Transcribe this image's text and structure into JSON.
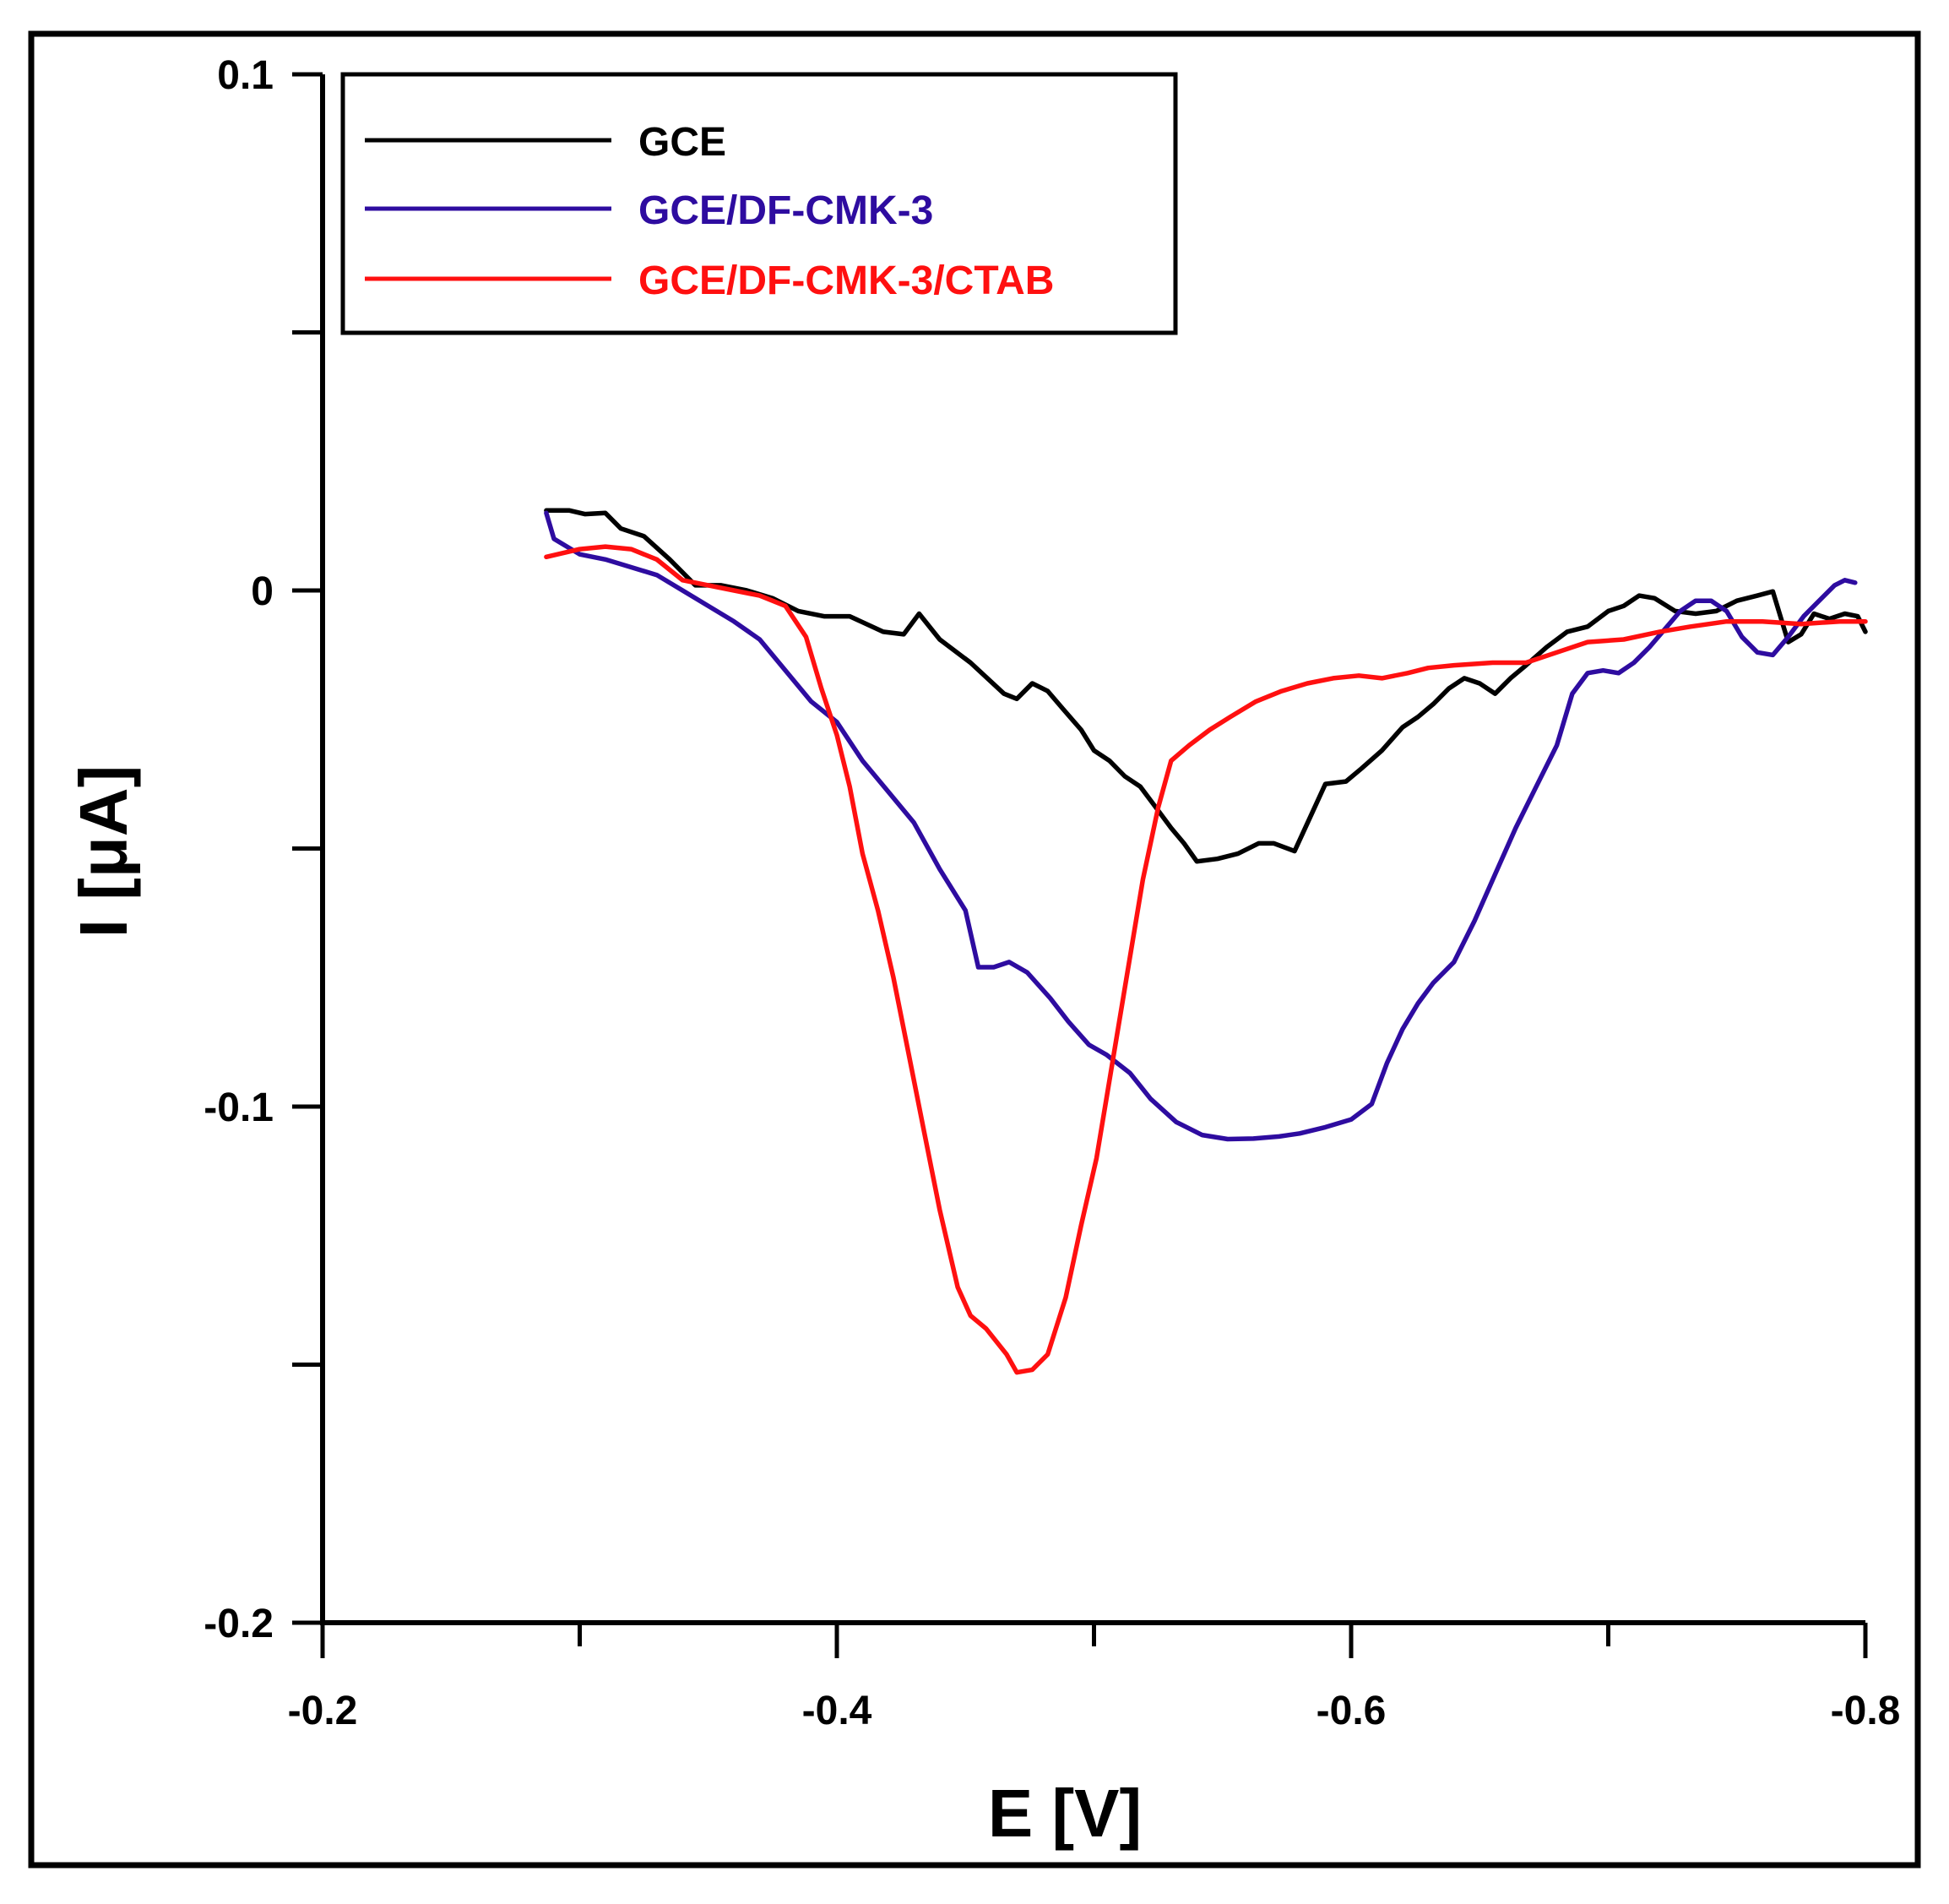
{
  "chart_data": {
    "type": "line",
    "title": "",
    "xlabel": "E [V]",
    "ylabel": "I [μA]",
    "xlim": [
      -0.2,
      -0.8
    ],
    "ylim": [
      -0.2,
      0.1
    ],
    "x_ticks": [
      {
        "value": -0.2,
        "label": "-0.2"
      },
      {
        "value": -0.4,
        "label": "-0.4"
      },
      {
        "value": -0.6,
        "label": "-0.6"
      },
      {
        "value": -0.8,
        "label": "-0.8"
      }
    ],
    "x_minor_ticks": [
      -0.3,
      -0.5,
      -0.7
    ],
    "y_ticks": [
      {
        "value": 0.1,
        "label": "0.1"
      },
      {
        "value": 0,
        "label": "0"
      },
      {
        "value": -0.1,
        "label": "-0.1"
      },
      {
        "value": -0.2,
        "label": "-0.2"
      }
    ],
    "y_minor_ticks": [
      0.05,
      -0.05,
      -0.15
    ],
    "grid": false,
    "legend_position": "top-left",
    "series": [
      {
        "name": "GCE",
        "color": "#000000",
        "points": [
          [
            -0.287,
            0.0155
          ],
          [
            -0.296,
            0.0155
          ],
          [
            -0.302,
            0.0148
          ],
          [
            -0.31,
            0.015
          ],
          [
            -0.316,
            0.012
          ],
          [
            -0.325,
            0.0105
          ],
          [
            -0.335,
            0.006
          ],
          [
            -0.345,
            0.001
          ],
          [
            -0.355,
            0.001
          ],
          [
            -0.365,
            0.0
          ],
          [
            -0.375,
            -0.0015
          ],
          [
            -0.385,
            -0.004
          ],
          [
            -0.395,
            -0.005
          ],
          [
            -0.405,
            -0.005
          ],
          [
            -0.418,
            -0.008
          ],
          [
            -0.426,
            -0.0085
          ],
          [
            -0.432,
            -0.0045
          ],
          [
            -0.44,
            -0.0095
          ],
          [
            -0.452,
            -0.014
          ],
          [
            -0.465,
            -0.02
          ],
          [
            -0.47,
            -0.021
          ],
          [
            -0.476,
            -0.018
          ],
          [
            -0.482,
            -0.0195
          ],
          [
            -0.488,
            -0.023
          ],
          [
            -0.495,
            -0.027
          ],
          [
            -0.5,
            -0.031
          ],
          [
            -0.506,
            -0.033
          ],
          [
            -0.512,
            -0.036
          ],
          [
            -0.518,
            -0.038
          ],
          [
            -0.524,
            -0.042
          ],
          [
            -0.53,
            -0.046
          ],
          [
            -0.535,
            -0.049
          ],
          [
            -0.54,
            -0.0525
          ],
          [
            -0.548,
            -0.052
          ],
          [
            -0.556,
            -0.051
          ],
          [
            -0.564,
            -0.049
          ],
          [
            -0.57,
            -0.049
          ],
          [
            -0.578,
            -0.0505
          ],
          [
            -0.584,
            -0.044
          ],
          [
            -0.59,
            -0.0375
          ],
          [
            -0.598,
            -0.037
          ],
          [
            -0.604,
            -0.0345
          ],
          [
            -0.612,
            -0.031
          ],
          [
            -0.62,
            -0.0265
          ],
          [
            -0.626,
            -0.0245
          ],
          [
            -0.632,
            -0.022
          ],
          [
            -0.638,
            -0.019
          ],
          [
            -0.644,
            -0.017
          ],
          [
            -0.65,
            -0.018
          ],
          [
            -0.656,
            -0.02
          ],
          [
            -0.662,
            -0.017
          ],
          [
            -0.668,
            -0.0145
          ],
          [
            -0.676,
            -0.011
          ],
          [
            -0.684,
            -0.008
          ],
          [
            -0.692,
            -0.007
          ],
          [
            -0.7,
            -0.004
          ],
          [
            -0.706,
            -0.003
          ],
          [
            -0.712,
            -0.001
          ],
          [
            -0.718,
            -0.0015
          ],
          [
            -0.726,
            -0.004
          ],
          [
            -0.734,
            -0.0045
          ],
          [
            -0.742,
            -0.004
          ],
          [
            -0.75,
            -0.002
          ],
          [
            -0.758,
            -0.001
          ],
          [
            -0.764,
            -0.0002
          ],
          [
            -0.77,
            -0.01
          ],
          [
            -0.775,
            -0.0085
          ],
          [
            -0.78,
            -0.0045
          ],
          [
            -0.786,
            -0.0055
          ],
          [
            -0.792,
            -0.0045
          ],
          [
            -0.797,
            -0.005
          ],
          [
            -0.8,
            -0.008
          ]
        ]
      },
      {
        "name": "GCE/DF-CMK-3",
        "color": "#2e0ca0",
        "points": [
          [
            -0.287,
            0.015
          ],
          [
            -0.29,
            0.01
          ],
          [
            -0.3,
            0.007
          ],
          [
            -0.31,
            0.006
          ],
          [
            -0.32,
            0.0045
          ],
          [
            -0.33,
            0.003
          ],
          [
            -0.34,
            0.0
          ],
          [
            -0.35,
            -0.003
          ],
          [
            -0.36,
            -0.006
          ],
          [
            -0.37,
            -0.0095
          ],
          [
            -0.38,
            -0.0155
          ],
          [
            -0.39,
            -0.0215
          ],
          [
            -0.4,
            -0.0255
          ],
          [
            -0.41,
            -0.033
          ],
          [
            -0.42,
            -0.039
          ],
          [
            -0.43,
            -0.045
          ],
          [
            -0.44,
            -0.054
          ],
          [
            -0.45,
            -0.062
          ],
          [
            -0.455,
            -0.073
          ],
          [
            -0.461,
            -0.073
          ],
          [
            -0.467,
            -0.072
          ],
          [
            -0.474,
            -0.074
          ],
          [
            -0.483,
            -0.079
          ],
          [
            -0.49,
            -0.0835
          ],
          [
            -0.498,
            -0.088
          ],
          [
            -0.505,
            -0.09
          ],
          [
            -0.514,
            -0.0935
          ],
          [
            -0.522,
            -0.0985
          ],
          [
            -0.532,
            -0.103
          ],
          [
            -0.542,
            -0.1055
          ],
          [
            -0.552,
            -0.1063
          ],
          [
            -0.562,
            -0.1062
          ],
          [
            -0.572,
            -0.1058
          ],
          [
            -0.58,
            -0.1052
          ],
          [
            -0.59,
            -0.104
          ],
          [
            -0.6,
            -0.1025
          ],
          [
            -0.608,
            -0.0995
          ],
          [
            -0.614,
            -0.0915
          ],
          [
            -0.62,
            -0.085
          ],
          [
            -0.626,
            -0.08
          ],
          [
            -0.632,
            -0.076
          ],
          [
            -0.64,
            -0.072
          ],
          [
            -0.648,
            -0.064
          ],
          [
            -0.656,
            -0.055
          ],
          [
            -0.664,
            -0.046
          ],
          [
            -0.672,
            -0.038
          ],
          [
            -0.68,
            -0.03
          ],
          [
            -0.686,
            -0.02
          ],
          [
            -0.692,
            -0.016
          ],
          [
            -0.698,
            -0.0155
          ],
          [
            -0.704,
            -0.016
          ],
          [
            -0.71,
            -0.014
          ],
          [
            -0.716,
            -0.011
          ],
          [
            -0.722,
            -0.0075
          ],
          [
            -0.728,
            -0.004
          ],
          [
            -0.734,
            -0.002
          ],
          [
            -0.74,
            -0.002
          ],
          [
            -0.746,
            -0.004
          ],
          [
            -0.752,
            -0.009
          ],
          [
            -0.758,
            -0.012
          ],
          [
            -0.764,
            -0.0125
          ],
          [
            -0.77,
            -0.009
          ],
          [
            -0.776,
            -0.005
          ],
          [
            -0.782,
            -0.002
          ],
          [
            -0.788,
            0.001
          ],
          [
            -0.792,
            0.002
          ],
          [
            -0.796,
            0.0015
          ]
        ]
      },
      {
        "name": "GCE/DF-CMK-3/CTAB",
        "color": "#ff1010",
        "points": [
          [
            -0.287,
            0.0065
          ],
          [
            -0.3,
            0.008
          ],
          [
            -0.31,
            0.0085
          ],
          [
            -0.32,
            0.008
          ],
          [
            -0.33,
            0.006
          ],
          [
            -0.34,
            0.002
          ],
          [
            -0.35,
            0.001
          ],
          [
            -0.36,
            0.0
          ],
          [
            -0.37,
            -0.001
          ],
          [
            -0.38,
            -0.003
          ],
          [
            -0.388,
            -0.009
          ],
          [
            -0.394,
            -0.019
          ],
          [
            -0.4,
            -0.028
          ],
          [
            -0.405,
            -0.038
          ],
          [
            -0.41,
            -0.051
          ],
          [
            -0.416,
            -0.062
          ],
          [
            -0.422,
            -0.075
          ],
          [
            -0.428,
            -0.09
          ],
          [
            -0.434,
            -0.105
          ],
          [
            -0.44,
            -0.12
          ],
          [
            -0.447,
            -0.135
          ],
          [
            -0.452,
            -0.1405
          ],
          [
            -0.458,
            -0.143
          ],
          [
            -0.466,
            -0.148
          ],
          [
            -0.47,
            -0.1515
          ],
          [
            -0.476,
            -0.151
          ],
          [
            -0.482,
            -0.148
          ],
          [
            -0.489,
            -0.137
          ],
          [
            -0.495,
            -0.123
          ],
          [
            -0.501,
            -0.11
          ],
          [
            -0.507,
            -0.092
          ],
          [
            -0.513,
            -0.074
          ],
          [
            -0.519,
            -0.056
          ],
          [
            -0.525,
            -0.042
          ],
          [
            -0.53,
            -0.033
          ],
          [
            -0.537,
            -0.03
          ],
          [
            -0.545,
            -0.027
          ],
          [
            -0.553,
            -0.0245
          ],
          [
            -0.563,
            -0.0215
          ],
          [
            -0.573,
            -0.0195
          ],
          [
            -0.583,
            -0.018
          ],
          [
            -0.593,
            -0.017
          ],
          [
            -0.603,
            -0.0165
          ],
          [
            -0.612,
            -0.017
          ],
          [
            -0.622,
            -0.016
          ],
          [
            -0.63,
            -0.015
          ],
          [
            -0.64,
            -0.0145
          ],
          [
            -0.655,
            -0.014
          ],
          [
            -0.668,
            -0.014
          ],
          [
            -0.68,
            -0.012
          ],
          [
            -0.692,
            -0.01
          ],
          [
            -0.706,
            -0.0095
          ],
          [
            -0.72,
            -0.008
          ],
          [
            -0.732,
            -0.007
          ],
          [
            -0.746,
            -0.006
          ],
          [
            -0.76,
            -0.006
          ],
          [
            -0.775,
            -0.0065
          ],
          [
            -0.79,
            -0.006
          ],
          [
            -0.8,
            -0.006
          ]
        ]
      }
    ]
  }
}
